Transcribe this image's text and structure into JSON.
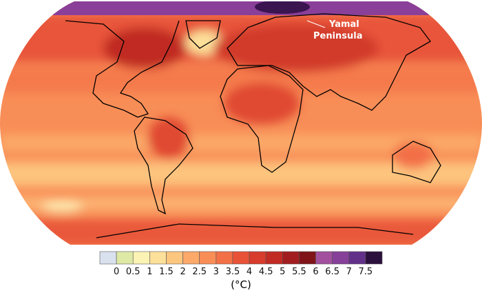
{
  "annotation": {
    "lines": [
      "Yamal",
      "Peninsula"
    ]
  },
  "legend": {
    "colors": [
      "#d9e1ef",
      "#dfe9a6",
      "#fbf3b4",
      "#fde09a",
      "#fdc67f",
      "#fca96a",
      "#f98d56",
      "#f37046",
      "#e85337",
      "#d73c2c",
      "#c12b24",
      "#a21d1f",
      "#801418",
      "#a2509e",
      "#864099",
      "#623089",
      "#2b0f3c"
    ],
    "ticks": [
      0,
      0.5,
      1,
      1.5,
      2,
      2.5,
      3,
      3.5,
      4,
      4.5,
      5,
      5.5,
      6,
      6.5,
      7,
      7.5
    ],
    "unit": "(°C)"
  }
}
